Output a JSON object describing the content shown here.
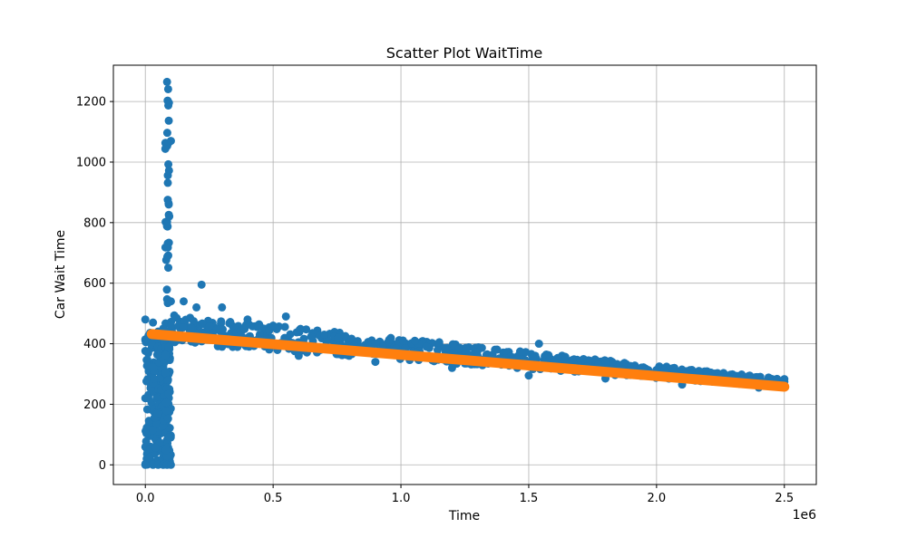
{
  "chart_data": {
    "type": "scatter",
    "title": "Scatter Plot WaitTime",
    "xlabel": "Time",
    "ylabel": "Car Wait Time",
    "x_offset_label": "1e6",
    "xlim": [
      -0.125,
      2.625
    ],
    "ylim": [
      -65,
      1320
    ],
    "x_ticks": [
      0.0,
      0.5,
      1.0,
      1.5,
      2.0,
      2.5
    ],
    "x_tick_labels": [
      "0.0",
      "0.5",
      "1.0",
      "1.5",
      "2.0",
      "2.5"
    ],
    "y_ticks": [
      0,
      200,
      400,
      600,
      800,
      1000,
      1200
    ],
    "y_tick_labels": [
      "0",
      "200",
      "400",
      "600",
      "800",
      "1000",
      "1200"
    ],
    "grid": true,
    "colors": {
      "scatter": "#1f77b4",
      "fit": "#ff7f0e"
    },
    "series": [
      {
        "points": [
          [
            0.0,
            0.0
          ],
          [
            0.0,
            220.0
          ],
          [
            0.0,
            480.0
          ],
          [
            0.03,
            0.0
          ],
          [
            0.03,
            470.0
          ],
          [
            0.05,
            0.0
          ],
          [
            0.05,
            440.0
          ],
          [
            0.07,
            0.0
          ],
          [
            0.07,
            450.0
          ],
          [
            0.085,
            0.0
          ],
          [
            0.085,
            1265.0
          ],
          [
            0.1,
            0.0
          ],
          [
            0.1,
            1070.0
          ],
          [
            0.1,
            540.0
          ],
          [
            0.15,
            540.0
          ],
          [
            0.2,
            520.0
          ],
          [
            0.22,
            595.0
          ],
          [
            0.3,
            520.0
          ],
          [
            0.4,
            480.0
          ],
          [
            0.5,
            460.0
          ],
          [
            0.55,
            490.0
          ],
          [
            0.7,
            430.0
          ],
          [
            0.9,
            400.0
          ],
          [
            1.1,
            390.0
          ],
          [
            1.15,
            405.0
          ],
          [
            1.3,
            360.0
          ],
          [
            1.45,
            350.0
          ],
          [
            1.54,
            400.0
          ],
          [
            1.6,
            340.0
          ],
          [
            1.8,
            335.0
          ],
          [
            2.0,
            310.0
          ],
          [
            2.2,
            290.0
          ],
          [
            2.4,
            280.0
          ],
          [
            2.5,
            275.0
          ],
          [
            0.3,
            390.0
          ],
          [
            0.6,
            360.0
          ],
          [
            0.9,
            340.0
          ],
          [
            1.2,
            320.0
          ],
          [
            1.5,
            295.0
          ],
          [
            1.8,
            285.0
          ],
          [
            2.1,
            265.0
          ],
          [
            2.4,
            255.0
          ]
        ]
      },
      {
        "points": [
          [
            0.025,
            432.0
          ],
          [
            2.5,
            258.0
          ]
        ]
      }
    ]
  }
}
